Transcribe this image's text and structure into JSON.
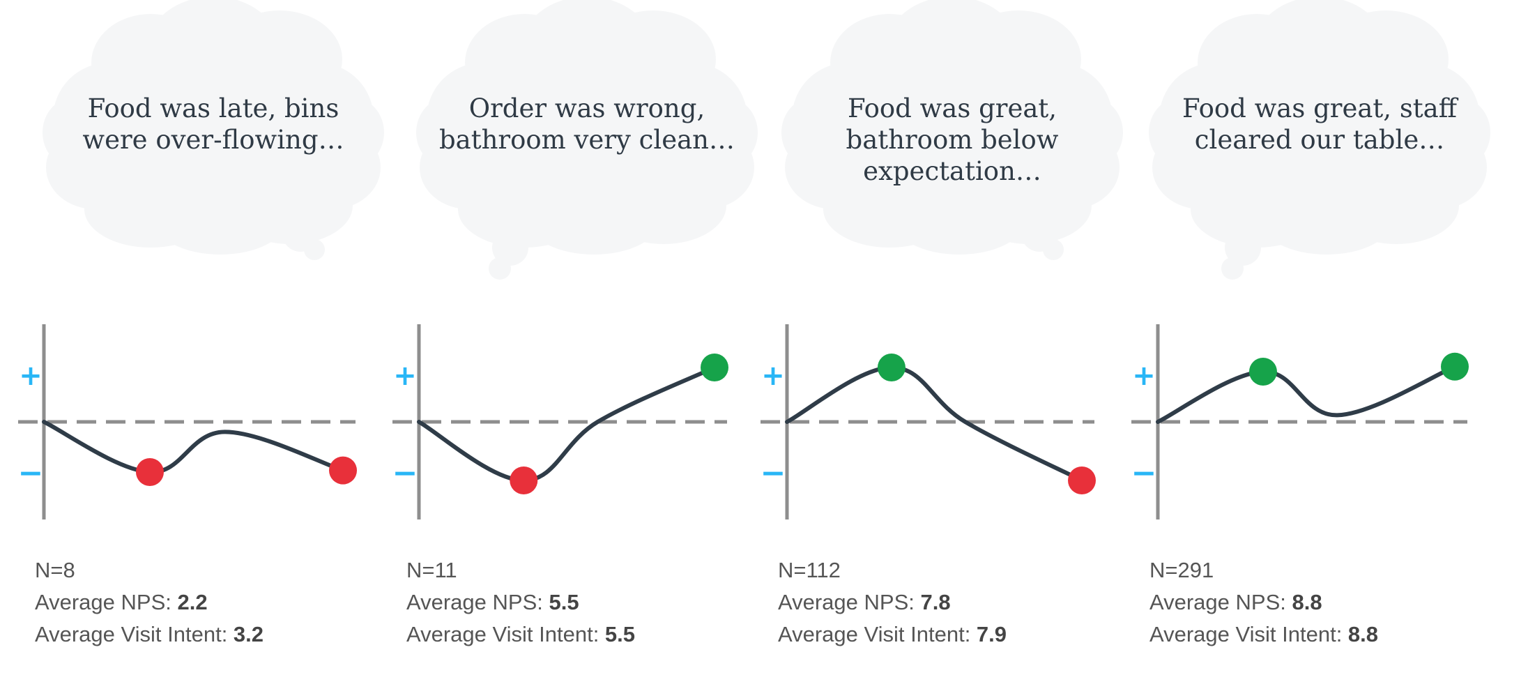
{
  "colors": {
    "cloud": "#f5f6f7",
    "axis": "#8e8e8e",
    "baseline": "#8e8e8e",
    "curve": "#2f3c48",
    "negative_point": "#e8303a",
    "positive_point": "#16a34a",
    "sign": "#29b6f6"
  },
  "panels": [
    {
      "thought_lines": [
        "Food was late, bins",
        "were over-flowing…"
      ],
      "plus": "+",
      "minus": "−",
      "curve_points": [
        {
          "v": 0.0,
          "role": "start"
        },
        {
          "v": -0.6,
          "marker": "negative"
        },
        {
          "v": -0.12
        },
        {
          "v": -0.58,
          "marker": "negative"
        }
      ],
      "n_label": "N=8",
      "nps_label": "Average NPS: ",
      "nps_value": "2.2",
      "intent_label": "Average Visit Intent: ",
      "intent_value": "3.2"
    },
    {
      "thought_lines": [
        "Order was wrong,",
        "bathroom very clean…"
      ],
      "plus": "+",
      "minus": "−",
      "curve_points": [
        {
          "v": 0.0,
          "role": "start"
        },
        {
          "v": -0.7,
          "marker": "negative"
        },
        {
          "v": 0.0
        },
        {
          "v": 0.65,
          "marker": "positive"
        }
      ],
      "n_label": "N=11",
      "nps_label": "Average NPS: ",
      "nps_value": "5.5",
      "intent_label": "Average Visit Intent: ",
      "intent_value": "5.5"
    },
    {
      "thought_lines": [
        "Food was great,",
        "bathroom below",
        "expectation…"
      ],
      "plus": "+",
      "minus": "−",
      "curve_points": [
        {
          "v": 0.0,
          "role": "start"
        },
        {
          "v": 0.65,
          "marker": "positive"
        },
        {
          "v": 0.0
        },
        {
          "v": -0.7,
          "marker": "negative"
        }
      ],
      "n_label": "N=112",
      "nps_label": "Average NPS: ",
      "nps_value": "7.8",
      "intent_label": "Average Visit Intent: ",
      "intent_value": "7.9"
    },
    {
      "thought_lines": [
        "Food was great, staff",
        "cleared our table…"
      ],
      "plus": "+",
      "minus": "−",
      "curve_points": [
        {
          "v": 0.0,
          "role": "start"
        },
        {
          "v": 0.6,
          "marker": "positive"
        },
        {
          "v": 0.08
        },
        {
          "v": 0.66,
          "marker": "positive"
        }
      ],
      "n_label": "N=291",
      "nps_label": "Average NPS: ",
      "nps_value": "8.8",
      "intent_label": "Average Visit Intent: ",
      "intent_value": "8.8"
    }
  ]
}
